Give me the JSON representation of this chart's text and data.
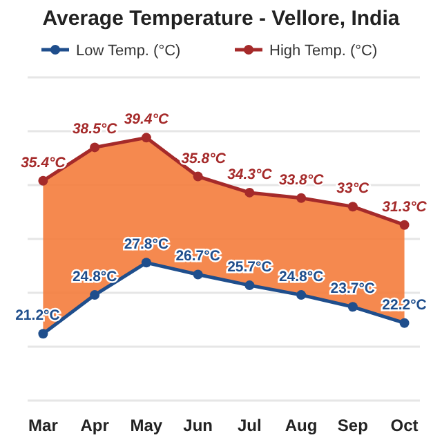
{
  "chart_data": {
    "type": "line",
    "title": "Average Temperature - Vellore, India",
    "categories": [
      "Mar",
      "Apr",
      "May",
      "Jun",
      "Jul",
      "Aug",
      "Sep",
      "Oct"
    ],
    "series": [
      {
        "name": "Low Temp. (°C)",
        "color": "#1f4e8c",
        "values": [
          21.2,
          24.8,
          27.8,
          26.7,
          25.7,
          24.8,
          23.7,
          22.2
        ],
        "value_labels": [
          "21.2°C",
          "24.8°C",
          "27.8°C",
          "26.7°C",
          "25.7°C",
          "24.8°C",
          "23.7°C",
          "22.2°C"
        ]
      },
      {
        "name": "High Temp. (°C)",
        "color": "#a52a2a",
        "values": [
          35.4,
          38.5,
          39.4,
          35.8,
          34.3,
          33.8,
          33,
          31.3
        ],
        "value_labels": [
          "35.4°C",
          "38.5°C",
          "39.4°C",
          "35.8°C",
          "34.3°C",
          "33.8°C",
          "33°C",
          "31.3°C"
        ]
      }
    ],
    "ylim": [
      15,
      45
    ],
    "yticks": [
      {
        "value": 15,
        "label": null
      },
      {
        "value": 20,
        "label": null
      },
      {
        "value": 25,
        "label": null
      },
      {
        "value": 30,
        "label": null
      },
      {
        "value": 35,
        "label": null
      },
      {
        "value": 40,
        "label": null
      },
      {
        "value": 45,
        "label": null
      }
    ],
    "grid": "y",
    "legend": "top left",
    "marker": "circle",
    "line_style": "solid",
    "tick_labels": "x"
  }
}
